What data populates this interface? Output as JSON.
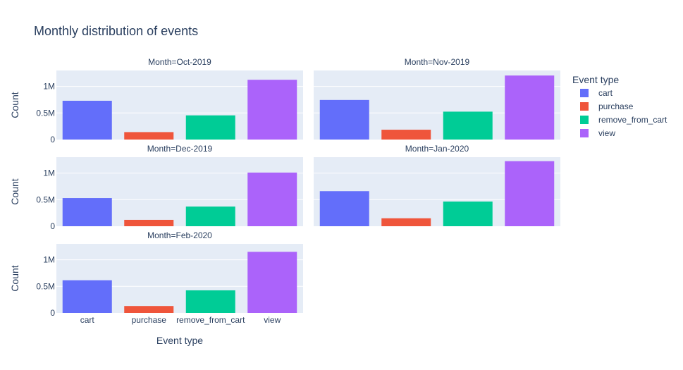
{
  "chart_data": {
    "type": "bar",
    "title": "Monthly distribution of events",
    "categories": [
      "cart",
      "purchase",
      "remove_from_cart",
      "view"
    ],
    "xlabel": "Event type",
    "ylabel": "Count",
    "ylim": [
      0,
      1300000
    ],
    "yticks": [
      {
        "value": 0,
        "label": "0"
      },
      {
        "value": 500000,
        "label": "0.5M"
      },
      {
        "value": 1000000,
        "label": "1M"
      }
    ],
    "grid": true,
    "legend": {
      "title": "Event type",
      "placement": "right",
      "entries": [
        "cart",
        "purchase",
        "remove_from_cart",
        "view"
      ]
    },
    "colors": {
      "cart": "#636efa",
      "purchase": "#ef553b",
      "remove_from_cart": "#00cc96",
      "view": "#ab63fa"
    },
    "facets": [
      {
        "label": "Month=Oct-2019",
        "values": [
          730000,
          140000,
          455000,
          1125000
        ]
      },
      {
        "label": "Month=Nov-2019",
        "values": [
          745000,
          185000,
          525000,
          1205000
        ]
      },
      {
        "label": "Month=Dec-2019",
        "values": [
          530000,
          120000,
          370000,
          1010000
        ]
      },
      {
        "label": "Month=Jan-2020",
        "values": [
          660000,
          150000,
          465000,
          1225000
        ]
      },
      {
        "label": "Month=Feb-2020",
        "values": [
          615000,
          130000,
          425000,
          1150000
        ]
      }
    ]
  }
}
